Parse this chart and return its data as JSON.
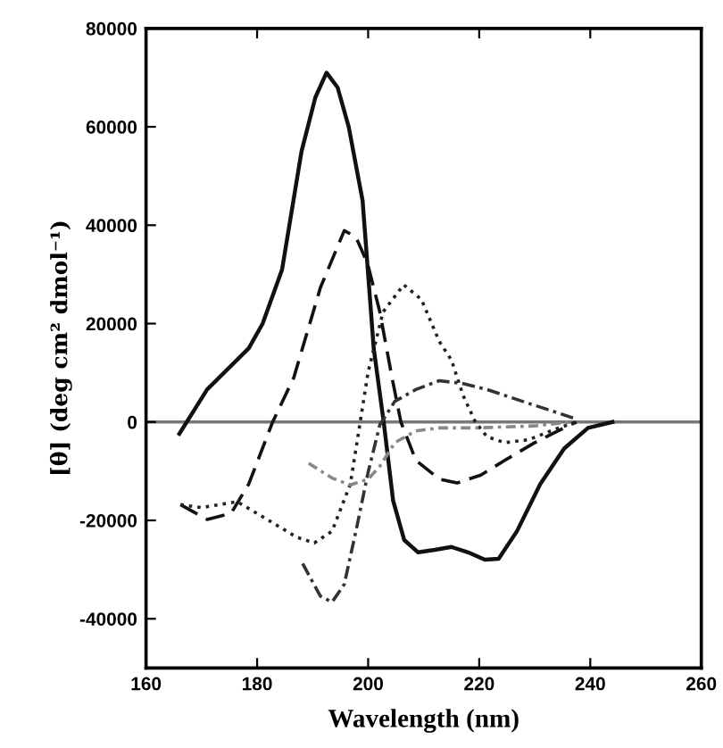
{
  "chart_data": {
    "type": "line",
    "xlabel": "Wavelength (nm)",
    "ylabel": "[θ] (deg cm² dmol⁻¹)",
    "xlim": [
      160,
      260
    ],
    "xticks": [
      160,
      180,
      200,
      220,
      240,
      260
    ],
    "ylim": [
      -50000,
      80000
    ],
    "yticks": [
      -40000,
      -20000,
      0,
      20000,
      40000,
      60000,
      80000
    ],
    "grid": false,
    "legend": false,
    "marker": "none",
    "ref_lines": [
      {
        "axis": "y",
        "value": 0,
        "color": "#777777",
        "line_style": "solid"
      }
    ],
    "series": [
      {
        "color": "#111111",
        "line_style": "solid",
        "x": [
          166,
          171,
          178.5,
          181,
          184.5,
          188,
          190.5,
          192.5,
          194.5,
          196.5,
          199,
          201,
          202.8,
          204.5,
          206.5,
          209,
          212,
          215,
          218,
          221,
          223.5,
          226.8,
          231,
          235.3,
          239.6,
          244
        ],
        "values": [
          -2400,
          6600,
          15000,
          20000,
          31000,
          55000,
          66000,
          71000,
          68000,
          60000,
          45000,
          15000,
          0,
          -16000,
          -24000,
          -26500,
          -26000,
          -25400,
          -26500,
          -28000,
          -27800,
          -22200,
          -12600,
          -5400,
          -1200,
          0
        ]
      },
      {
        "color": "#111111",
        "line_style": "dashed",
        "x": [
          166.2,
          171,
          175.3,
          178.5,
          182.8,
          186.6,
          191.4,
          195.7,
          197.8,
          199.9,
          202.1,
          204.3,
          205.9,
          208.6,
          212.8,
          216,
          220.3,
          224.6,
          230,
          235.3,
          237.5
        ],
        "values": [
          -16800,
          -19800,
          -18600,
          -12600,
          0,
          9000,
          27300,
          38900,
          37600,
          32200,
          22400,
          9000,
          0,
          -7800,
          -11600,
          -12400,
          -10800,
          -7800,
          -4200,
          -1200,
          0
        ]
      },
      {
        "color": "#222222",
        "line_style": "dotted",
        "x": [
          166.2,
          170,
          176.4,
          181.8,
          187.1,
          190.3,
          193.5,
          196.8,
          200,
          202.7,
          206.4,
          209.6,
          212.8,
          215,
          217.1,
          219.3,
          221.4,
          224.6,
          228.9,
          234.3,
          237.5
        ],
        "values": [
          -16800,
          -17400,
          -16200,
          -19800,
          -23400,
          -24600,
          -22200,
          -12600,
          10200,
          22400,
          27900,
          24900,
          16400,
          12600,
          5400,
          0,
          -3000,
          -4200,
          -3600,
          -1200,
          0
        ]
      },
      {
        "color": "#333333",
        "line_style": "dashed",
        "x": [
          188.2,
          191.4,
          193.5,
          195.7,
          197.8,
          200,
          202.1,
          204.8,
          208.6,
          212.8,
          217.1,
          221.4,
          227.8,
          234.3,
          237.5
        ],
        "values": [
          -28800,
          -35400,
          -36600,
          -33000,
          -22200,
          -10200,
          -600,
          4200,
          6600,
          8400,
          7800,
          6600,
          4200,
          1800,
          600
        ]
      },
      {
        "color": "#888888",
        "line_style": "dashed",
        "x": [
          189.3,
          193.5,
          196.8,
          200,
          202.1,
          204.8,
          208.6,
          212.8,
          219.3,
          230,
          236.4
        ],
        "values": [
          -8400,
          -11400,
          -12800,
          -11600,
          -9000,
          -4200,
          -1800,
          -1200,
          -1200,
          -800,
          0
        ]
      }
    ]
  }
}
